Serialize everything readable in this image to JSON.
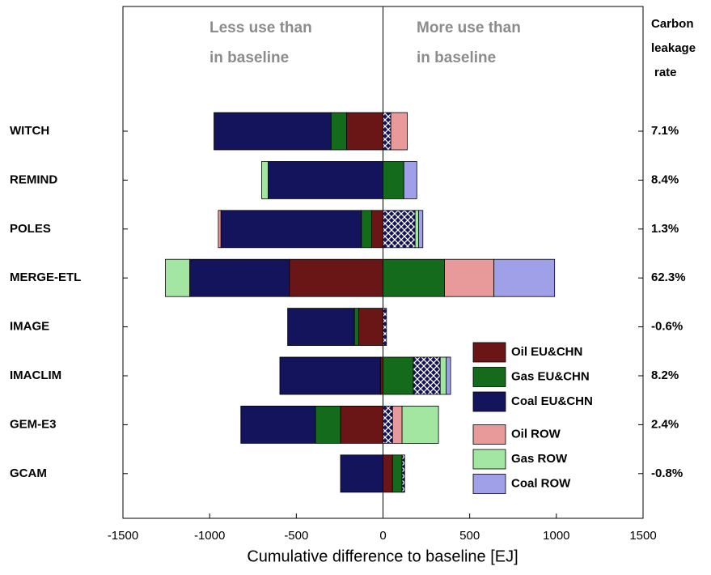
{
  "chart_data": {
    "type": "diverging-bar",
    "categories": [
      "WITCH",
      "REMIND",
      "POLES",
      "MERGE-ETL",
      "IMAGE",
      "IMACLIM",
      "GEM-E3",
      "GCAM"
    ],
    "series": [
      {
        "name": "Oil EU&CHN",
        "color": "#6b1616",
        "values": [
          -210,
          0,
          -65,
          -540,
          -140,
          -15,
          -245,
          55
        ]
      },
      {
        "name": "Gas EU&CHN",
        "color": "#156b1c",
        "values": [
          -90,
          120,
          -60,
          355,
          -25,
          175,
          -145,
          55
        ]
      },
      {
        "name": "Coal EU&CHN",
        "color": "#14145c",
        "values": [
          -675,
          -663,
          -810,
          -575,
          -385,
          -580,
          -430,
          -245
        ]
      },
      {
        "name": null,
        "color": "#14145c",
        "hatch": true,
        "values": [
          45,
          0,
          185,
          0,
          20,
          155,
          55,
          15
        ]
      },
      {
        "name": "Oil ROW",
        "color": "#e89a9a",
        "values": [
          95,
          0,
          -15,
          285,
          0,
          0,
          55,
          0
        ]
      },
      {
        "name": "Gas ROW",
        "color": "#a2e6a2",
        "values": [
          0,
          -37,
          20,
          -140,
          0,
          35,
          210,
          0
        ]
      },
      {
        "name": "Coal ROW",
        "color": "#a0a0e8",
        "values": [
          0,
          75,
          25,
          350,
          0,
          25,
          0,
          0
        ]
      }
    ],
    "xlim": [
      -1500,
      1500
    ],
    "xticks": [
      -1500,
      -1000,
      -500,
      0,
      500,
      1000,
      1500
    ],
    "xlabel": "Cumulative difference to baseline [EJ]",
    "annotations": [
      "Less use than",
      "in baseline",
      "More use than",
      "in baseline"
    ],
    "leakage": {
      "title": [
        "Carbon",
        "leakage",
        "rate"
      ],
      "values": [
        7.1,
        8.4,
        1.3,
        62.3,
        -0.6,
        8.2,
        2.4,
        -0.8
      ],
      "value_labels": [
        "7.1%",
        "8.4%",
        "1.3%",
        "62.3%",
        "-0.6%",
        "8.2%",
        "2.4%",
        "-0.8%"
      ]
    }
  }
}
